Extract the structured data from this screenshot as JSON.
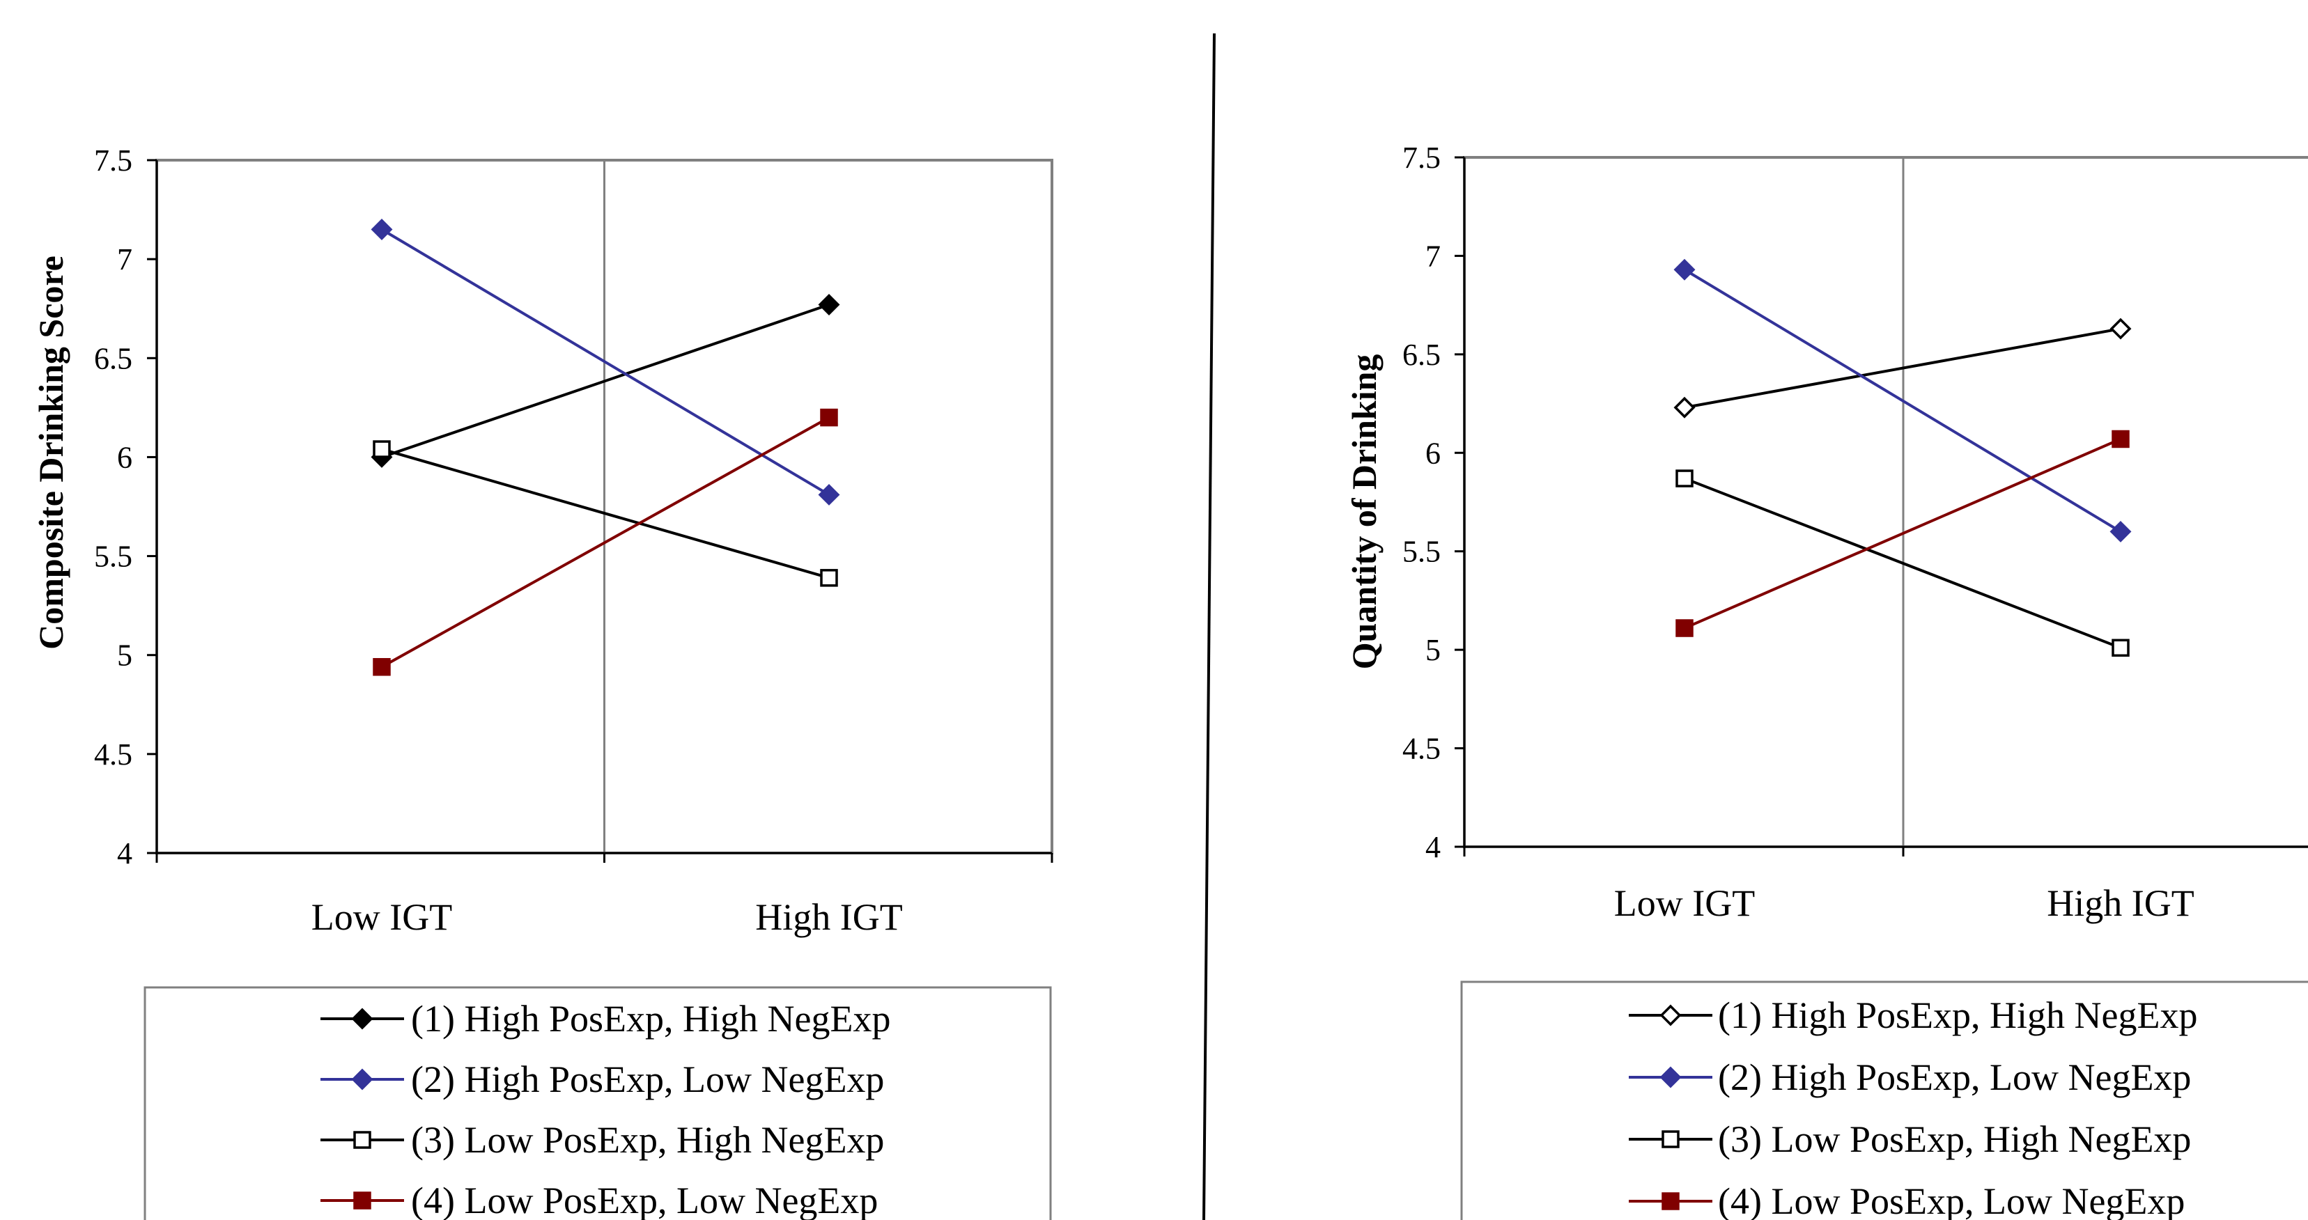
{
  "chart_data": [
    {
      "type": "line",
      "ylabel": "Composite Drinking Score",
      "xlabel": "",
      "categories": [
        "Low IGT",
        "High IGT"
      ],
      "ylim": [
        4,
        7.5
      ],
      "yticks": [
        "4",
        "4.5",
        "5",
        "5.5",
        "6",
        "6.5",
        "7",
        "7.5"
      ],
      "grid": "vertical divider between categories",
      "legend_position": "bottom",
      "series": [
        {
          "name": "(1) High PosExp, High NegExp",
          "values": [
            6.0,
            6.77
          ],
          "color": "#000000",
          "marker": "diamond",
          "filled": true
        },
        {
          "name": "(2) High PosExp, Low NegExp",
          "values": [
            7.15,
            5.81
          ],
          "color": "#333399",
          "marker": "diamond",
          "filled": true
        },
        {
          "name": "(3) Low PosExp, High NegExp",
          "values": [
            6.04,
            5.39
          ],
          "color": "#000000",
          "marker": "square",
          "filled": false
        },
        {
          "name": "(4) Low PosExp, Low NegExp",
          "values": [
            4.94,
            6.2
          ],
          "color": "#800000",
          "marker": "square",
          "filled": true
        }
      ]
    },
    {
      "type": "line",
      "ylabel": "Quantity of Drinking",
      "xlabel": "",
      "categories": [
        "Low IGT",
        "High IGT"
      ],
      "ylim": [
        4,
        7.5
      ],
      "yticks": [
        "4",
        "4.5",
        "5",
        "5.5",
        "6",
        "6.5",
        "7",
        "7.5"
      ],
      "grid": "vertical divider between categories",
      "legend_position": "bottom",
      "series": [
        {
          "name": "(1) High PosExp, High NegExp",
          "values": [
            6.23,
            6.63
          ],
          "color": "#000000",
          "marker": "diamond",
          "filled": false
        },
        {
          "name": "(2) High PosExp, Low NegExp",
          "values": [
            6.93,
            5.6
          ],
          "color": "#333399",
          "marker": "diamond",
          "filled": true
        },
        {
          "name": "(3) Low PosExp, High NegExp",
          "values": [
            5.87,
            5.01
          ],
          "color": "#000000",
          "marker": "square",
          "filled": false
        },
        {
          "name": "(4) Low PosExp, Low NegExp",
          "values": [
            5.11,
            6.07
          ],
          "color": "#800000",
          "marker": "square",
          "filled": true
        }
      ]
    }
  ]
}
